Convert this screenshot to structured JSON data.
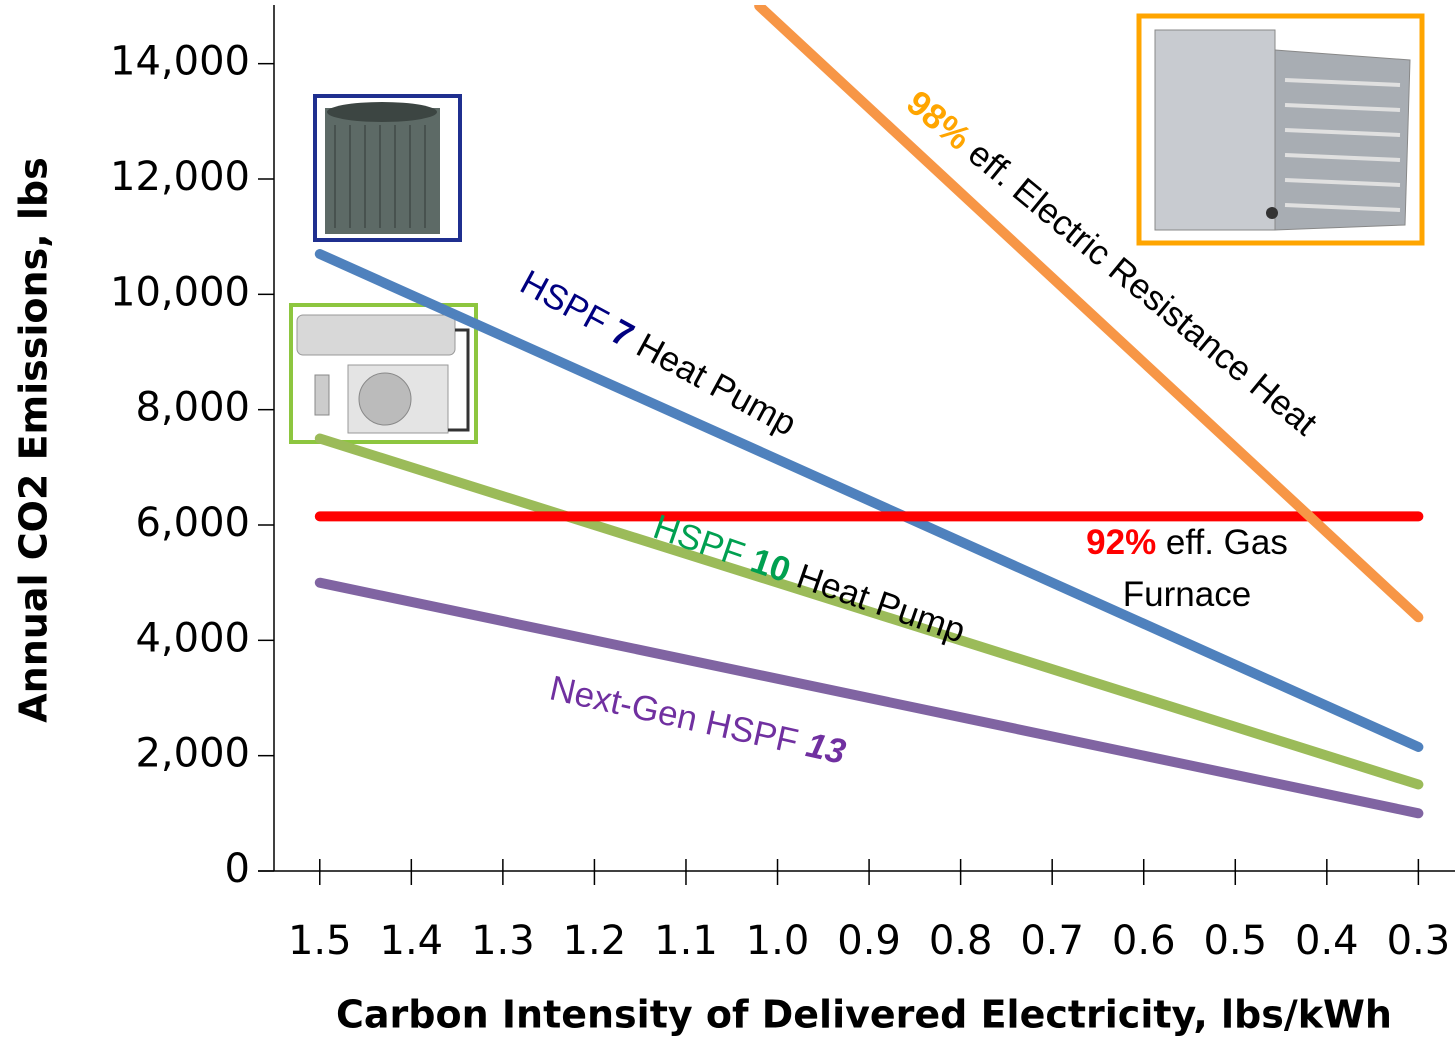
{
  "chart_data": {
    "type": "line",
    "xlabel": "Carbon Intensity of Delivered Electricity, lbs/kWh",
    "ylabel": "Annual CO2 Emissions, lbs",
    "xlim": [
      1.55,
      0.26
    ],
    "xticks": [
      1.5,
      1.4,
      1.3,
      1.2,
      1.1,
      {
        "value": 1,
        "label": "1.0"
      },
      0.9,
      0.8,
      0.7,
      0.6,
      0.5,
      0.4,
      0.3
    ],
    "ylim": [
      0,
      15000
    ],
    "yticks": [
      0,
      {
        "value": 2000,
        "label": "2,000"
      },
      {
        "value": 4000,
        "label": "4,000"
      },
      {
        "value": 6000,
        "label": "6,000"
      },
      {
        "value": 8000,
        "label": "8,000"
      },
      {
        "value": 10000,
        "label": "10,000"
      },
      {
        "value": 12000,
        "label": "12,000"
      },
      {
        "value": 14000,
        "label": "14,000"
      }
    ],
    "grid": false,
    "series": [
      {
        "color": "#4f81bd",
        "x": [
          1.5,
          0.3
        ],
        "values": [
          10700,
          2150
        ]
      },
      {
        "color": "#9bbb59",
        "x": [
          1.5,
          0.3
        ],
        "values": [
          7500,
          1500
        ]
      },
      {
        "color": "#8064a2",
        "x": [
          1.5,
          0.3
        ],
        "values": [
          5000,
          1000
        ]
      },
      {
        "color": "#ff0000",
        "x": [
          1.5,
          0.3
        ],
        "values": [
          6150,
          6150
        ]
      },
      {
        "color": "#f79646",
        "x": [
          1.02,
          0.3
        ],
        "values": [
          15000,
          4400
        ]
      }
    ],
    "annotations": [
      {
        "lines": [
          [
            {
              "text": "HSPF ",
              "color": "#000080"
            },
            {
              "text": "7",
              "color": "#000080",
              "bold": true
            },
            {
              "text": " Heat Pump",
              "color": "#000000"
            }
          ]
        ]
      },
      {
        "lines": [
          [
            {
              "text": "98%",
              "color": "#ffa500",
              "bold": true
            },
            {
              "text": " eff. Electric Resistance Heat",
              "color": "#000000"
            }
          ]
        ]
      },
      {
        "lines": [
          [
            {
              "text": "92%",
              "color": "#ff0000",
              "bold": true
            },
            {
              "text": " eff. Gas",
              "color": "#000000"
            }
          ],
          [
            {
              "text": "Furnace",
              "color": "#000000"
            }
          ]
        ]
      },
      {
        "lines": [
          [
            {
              "text": "HSPF ",
              "color": "#00a050"
            },
            {
              "text": "10",
              "color": "#00a050",
              "bold": true
            },
            {
              "text": " Heat Pump",
              "color": "#000000"
            }
          ]
        ]
      },
      {
        "lines": [
          [
            {
              "text": "Next-Gen HSPF ",
              "color": "#7030a0"
            },
            {
              "text": "13",
              "color": "#7030a0",
              "bold": true,
              "italic": true
            }
          ]
        ]
      }
    ]
  }
}
